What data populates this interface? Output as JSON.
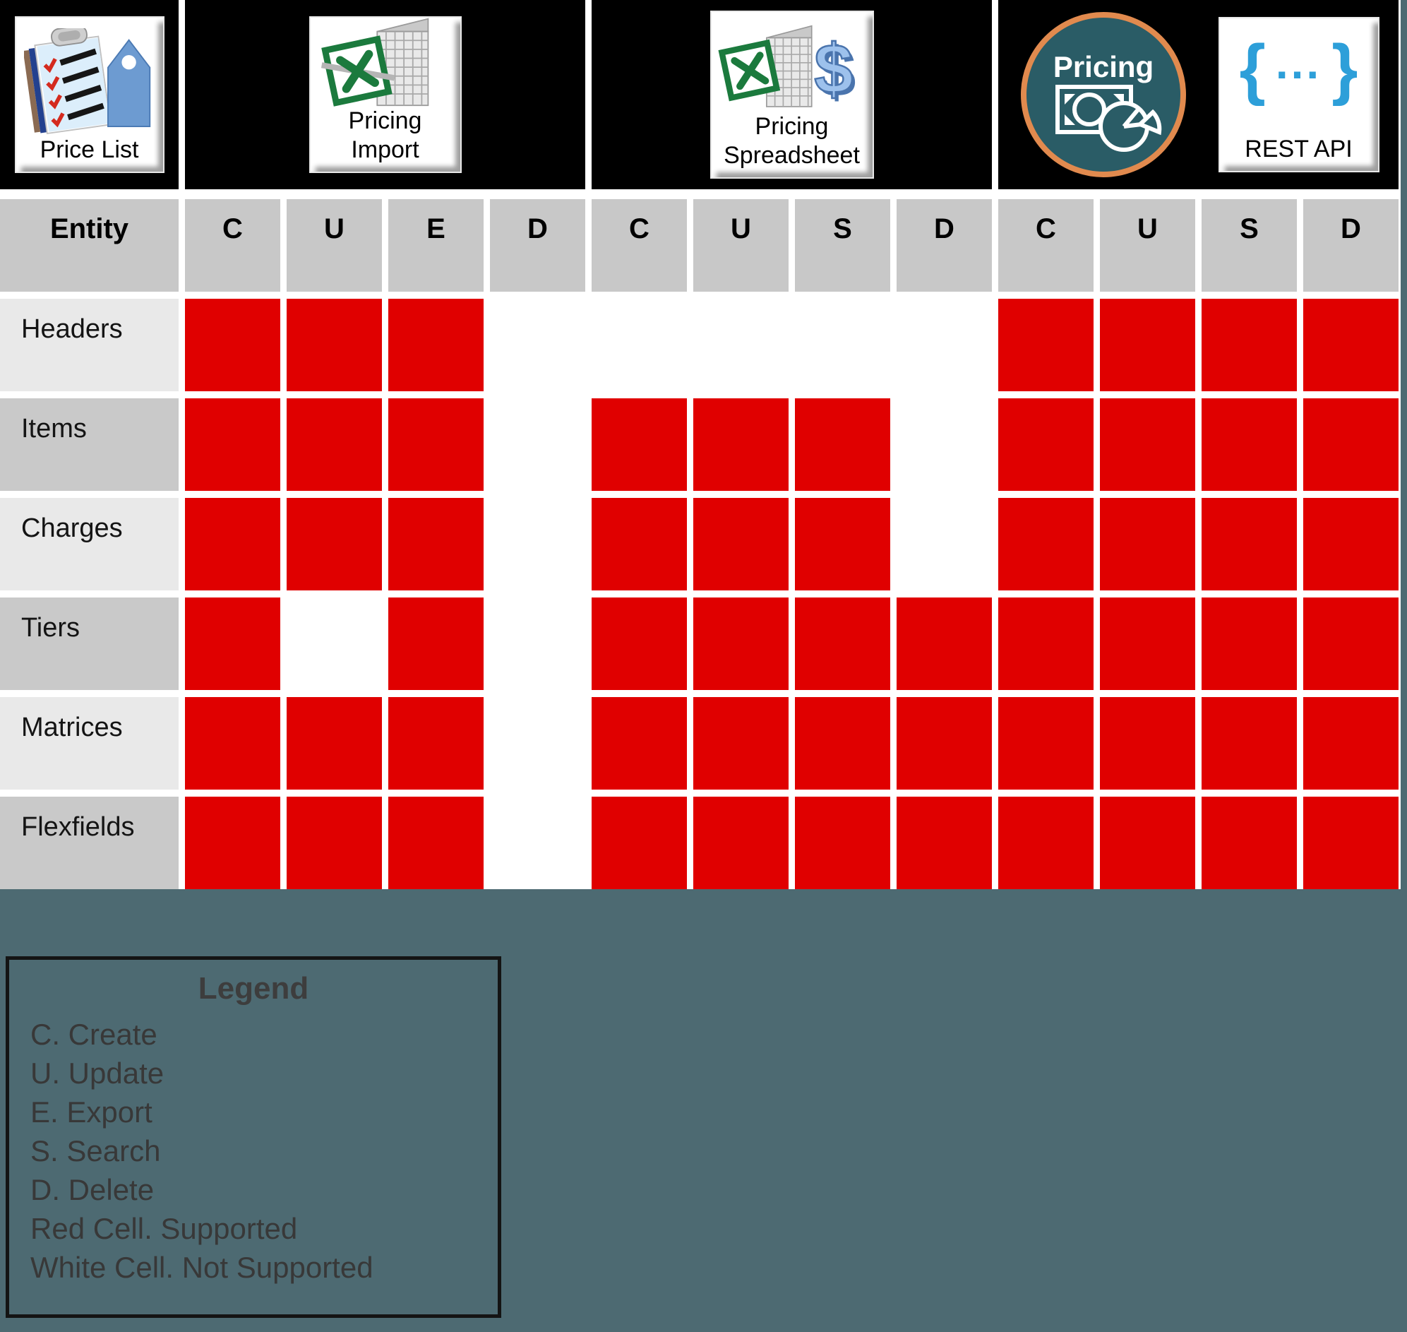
{
  "toolbar": {
    "price_list": {
      "label": "Price List"
    },
    "pricing_import": {
      "line1": "Pricing",
      "line2": "Import"
    },
    "pricing_spreadsheet": {
      "line1": "Pricing",
      "line2": "Spreadsheet"
    },
    "pricing_badge": {
      "label": "Pricing"
    },
    "rest_api": {
      "label": "REST API",
      "brace_open": "{",
      "dots": "...",
      "brace_close": "}"
    }
  },
  "matrix": {
    "entity_header": "Entity",
    "column_groups": [
      {
        "name": "price-list",
        "columns": [
          "C",
          "U",
          "E",
          "D"
        ]
      },
      {
        "name": "pricing-spreadsheet",
        "columns": [
          "C",
          "U",
          "S",
          "D"
        ]
      },
      {
        "name": "rest-api",
        "columns": [
          "C",
          "U",
          "S",
          "D"
        ]
      }
    ],
    "rows": [
      {
        "entity": "Headers",
        "cells": [
          1,
          1,
          1,
          0,
          0,
          0,
          0,
          0,
          1,
          1,
          1,
          1
        ]
      },
      {
        "entity": "Items",
        "cells": [
          1,
          1,
          1,
          0,
          1,
          1,
          1,
          0,
          1,
          1,
          1,
          1
        ]
      },
      {
        "entity": "Charges",
        "cells": [
          1,
          1,
          1,
          0,
          1,
          1,
          1,
          0,
          1,
          1,
          1,
          1
        ]
      },
      {
        "entity": "Tiers",
        "cells": [
          1,
          0,
          1,
          0,
          1,
          1,
          1,
          1,
          1,
          1,
          1,
          1
        ]
      },
      {
        "entity": "Matrices",
        "cells": [
          1,
          1,
          1,
          0,
          1,
          1,
          1,
          1,
          1,
          1,
          1,
          1
        ]
      },
      {
        "entity": "Flexfields",
        "cells": [
          1,
          1,
          1,
          0,
          1,
          1,
          1,
          1,
          1,
          1,
          1,
          1
        ]
      }
    ]
  },
  "legend": {
    "title": "Legend",
    "items": [
      "C. Create",
      "U. Update",
      "E. Export",
      "S. Search",
      "D. Delete"
    ],
    "notes": [
      "Red Cell. Supported",
      "White Cell. Not Supported"
    ]
  },
  "colors": {
    "supported_cell": "#e00000",
    "not_supported_cell": "#ffffff",
    "header_gray": "#c8c8c8",
    "row_label_light": "#e9e9e9",
    "row_label_dark": "#c9c9c9",
    "background_teal": "#4d6a72",
    "badge_teal": "#2a5c66",
    "badge_ring_orange": "#e18a4e",
    "excel_green": "#1b7a3d",
    "braces_blue": "#2d9fd9",
    "tag_blue": "#6d9bd1",
    "dollar_blue": "#9dc1ec",
    "block_black": "#000000"
  }
}
